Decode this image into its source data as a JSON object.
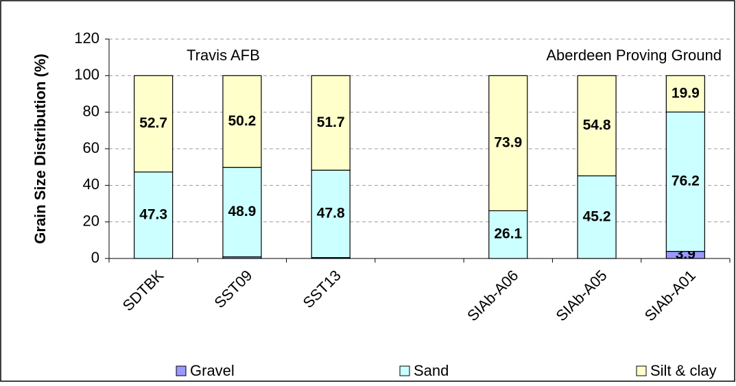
{
  "chart_data": {
    "type": "stacked_bar",
    "y_axis_label": "Grain Size Distribution (%)",
    "annotations": [
      "Travis AFB",
      "Aberdeen Proving Ground"
    ],
    "categories": [
      "SDTBK",
      "SST09",
      "SST13",
      null,
      "SIAb-A06",
      "SIAb-A05",
      "SIAb-A01"
    ],
    "series": [
      {
        "name": "Gravel",
        "color": "#9999ff",
        "values": [
          0,
          0.9,
          0.5,
          null,
          0,
          0,
          3.9
        ]
      },
      {
        "name": "Sand",
        "color": "#ccffff",
        "values": [
          47.3,
          48.9,
          47.8,
          null,
          26.1,
          45.2,
          76.2
        ]
      },
      {
        "name": "Silt & clay",
        "color": "#ffffcc",
        "values": [
          52.7,
          50.2,
          51.7,
          null,
          73.9,
          54.8,
          19.9
        ]
      }
    ],
    "ylim": [
      0,
      120
    ],
    "yticks": [
      0,
      20,
      40,
      60,
      80,
      100,
      120
    ],
    "grid": true,
    "legend": "bottom"
  }
}
